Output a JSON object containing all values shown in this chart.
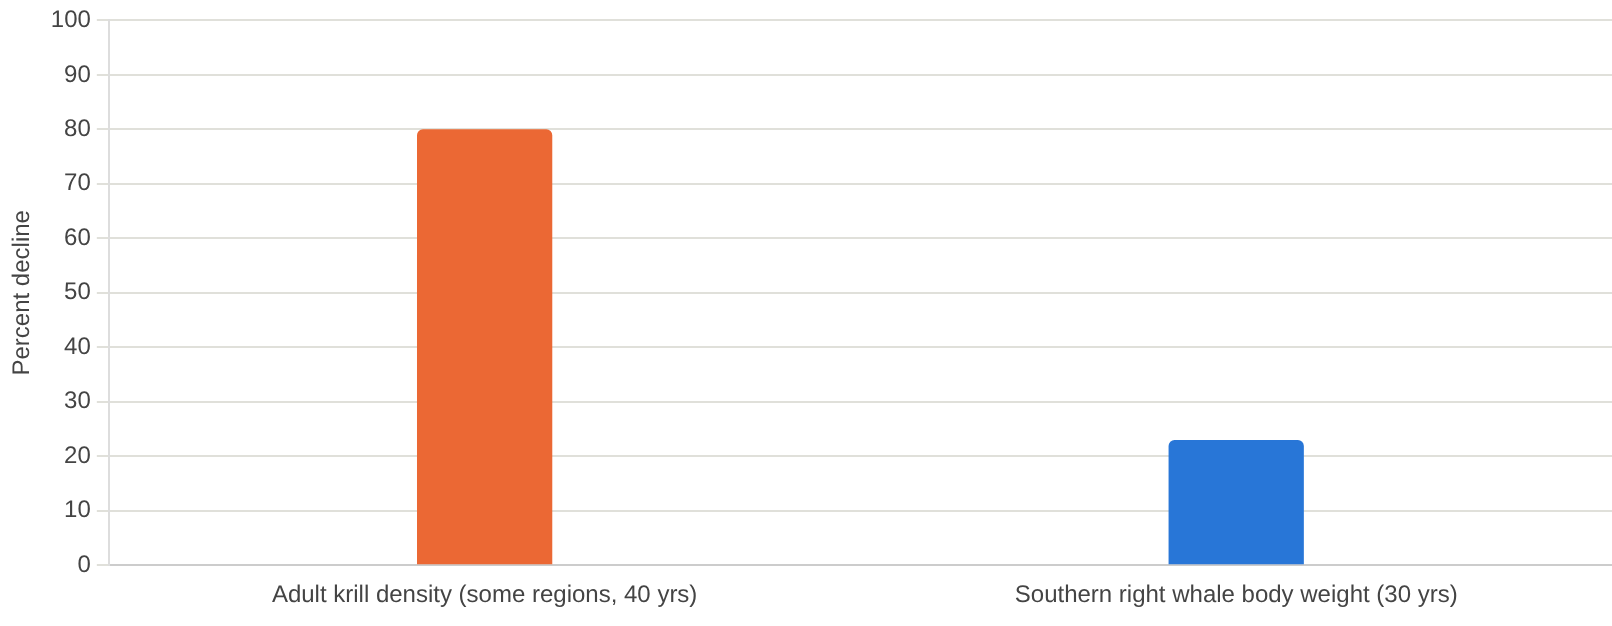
{
  "chart_data": {
    "type": "bar",
    "ylabel": "Percent decline",
    "categories": [
      "Adult krill density (some regions, 40 yrs)",
      "Southern right whale body weight (30 yrs)"
    ],
    "values": [
      80,
      23
    ],
    "colors": [
      "#eb6834",
      "#2876d7"
    ],
    "ylim": [
      0,
      100
    ],
    "yticks": [
      0,
      10,
      20,
      30,
      40,
      50,
      60,
      70,
      80,
      90,
      100
    ],
    "grid": "y",
    "legend": false
  }
}
